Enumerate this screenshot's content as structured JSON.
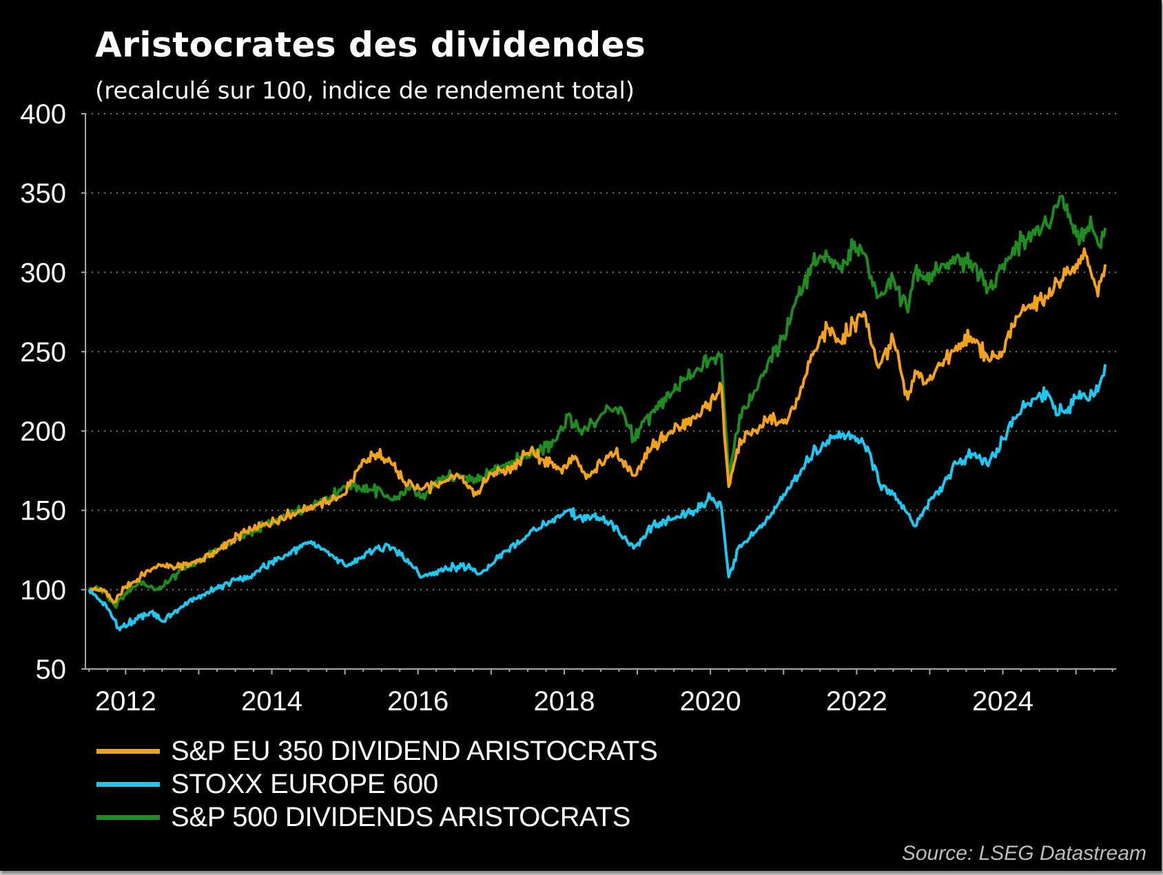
{
  "header": {
    "title": "Aristocrates des dividendes",
    "subtitle": "(recalculé sur 100, indice de rendement total)"
  },
  "footer": {
    "source": "Source: LSEG Datastream"
  },
  "chart_data": {
    "type": "line",
    "title": "Aristocrates des dividendes",
    "subtitle": "(recalculé sur 100, indice de rendement total)",
    "xlabel": "",
    "ylabel": "",
    "xlim": [
      2011.45,
      2025.55
    ],
    "ylim": [
      50,
      400
    ],
    "yticks": [
      50,
      100,
      150,
      200,
      250,
      300,
      350,
      400
    ],
    "xticks": [
      2012,
      2014,
      2016,
      2018,
      2020,
      2022,
      2024
    ],
    "grid": "horizontal dotted",
    "legend": "bottom",
    "series": [
      {
        "name": "S&P EU 350 DIVIDEND ARISTOCRATS",
        "color": "#f5a21b",
        "x": [
          2011.5,
          2011.7,
          2011.85,
          2012.0,
          2012.2,
          2012.45,
          2012.7,
          2013.0,
          2013.3,
          2013.6,
          2013.9,
          2014.2,
          2014.5,
          2014.8,
          2015.0,
          2015.2,
          2015.4,
          2015.6,
          2015.8,
          2016.05,
          2016.3,
          2016.55,
          2016.8,
          2017.0,
          2017.3,
          2017.5,
          2017.7,
          2017.95,
          2018.15,
          2018.3,
          2018.5,
          2018.7,
          2018.95,
          2019.2,
          2019.5,
          2019.8,
          2020.05,
          2020.15,
          2020.25,
          2020.4,
          2020.6,
          2020.8,
          2021.0,
          2021.2,
          2021.4,
          2021.6,
          2021.8,
          2021.95,
          2022.1,
          2022.3,
          2022.5,
          2022.7,
          2022.8,
          2022.95,
          2023.2,
          2023.4,
          2023.6,
          2023.8,
          2024.0,
          2024.2,
          2024.4,
          2024.6,
          2024.8,
          2025.0,
          2025.15,
          2025.3,
          2025.4
        ],
        "values": [
          100,
          100,
          92,
          102,
          108,
          116,
          114,
          118,
          126,
          136,
          141,
          146,
          152,
          156,
          160,
          178,
          185,
          183,
          168,
          163,
          168,
          172,
          160,
          173,
          176,
          186,
          182,
          176,
          184,
          170,
          180,
          186,
          172,
          190,
          200,
          208,
          220,
          228,
          165,
          195,
          200,
          208,
          205,
          220,
          248,
          265,
          255,
          268,
          275,
          240,
          258,
          220,
          238,
          230,
          245,
          255,
          258,
          245,
          250,
          272,
          280,
          284,
          295,
          305,
          310,
          285,
          305
        ]
      },
      {
        "name": "STOXX EUROPE 600",
        "color": "#1ec8f0",
        "x": [
          2011.5,
          2011.75,
          2011.9,
          2012.1,
          2012.35,
          2012.5,
          2012.8,
          2013.1,
          2013.4,
          2013.7,
          2014.0,
          2014.2,
          2014.5,
          2014.75,
          2015.0,
          2015.2,
          2015.4,
          2015.6,
          2015.8,
          2016.05,
          2016.3,
          2016.6,
          2016.85,
          2017.1,
          2017.4,
          2017.6,
          2017.9,
          2018.05,
          2018.2,
          2018.5,
          2018.7,
          2018.95,
          2019.2,
          2019.5,
          2019.8,
          2020.0,
          2020.15,
          2020.25,
          2020.4,
          2020.6,
          2020.8,
          2021.0,
          2021.2,
          2021.4,
          2021.6,
          2021.8,
          2021.95,
          2022.15,
          2022.3,
          2022.5,
          2022.7,
          2022.8,
          2022.95,
          2023.2,
          2023.4,
          2023.6,
          2023.8,
          2024.0,
          2024.2,
          2024.4,
          2024.6,
          2024.75,
          2024.9,
          2025.05,
          2025.15,
          2025.3,
          2025.4
        ],
        "values": [
          100,
          88,
          76,
          80,
          86,
          80,
          90,
          98,
          104,
          108,
          118,
          122,
          130,
          124,
          115,
          120,
          125,
          128,
          120,
          108,
          112,
          115,
          110,
          120,
          130,
          138,
          146,
          150,
          146,
          145,
          140,
          126,
          140,
          145,
          150,
          158,
          152,
          108,
          128,
          136,
          145,
          160,
          172,
          186,
          194,
          198,
          196,
          190,
          168,
          160,
          148,
          140,
          152,
          168,
          180,
          185,
          178,
          195,
          210,
          220,
          225,
          210,
          215,
          225,
          220,
          225,
          242
        ]
      },
      {
        "name": "S&P 500 DIVIDENDS ARISTOCRATS",
        "color": "#1e8c1e",
        "x": [
          2011.5,
          2011.7,
          2011.85,
          2012.0,
          2012.2,
          2012.45,
          2012.7,
          2013.0,
          2013.3,
          2013.6,
          2013.9,
          2014.2,
          2014.5,
          2014.8,
          2015.0,
          2015.2,
          2015.5,
          2015.7,
          2015.9,
          2016.05,
          2016.3,
          2016.55,
          2016.8,
          2017.0,
          2017.3,
          2017.6,
          2017.9,
          2018.05,
          2018.2,
          2018.4,
          2018.6,
          2018.8,
          2018.95,
          2019.2,
          2019.5,
          2019.8,
          2020.05,
          2020.15,
          2020.25,
          2020.4,
          2020.6,
          2020.8,
          2021.0,
          2021.2,
          2021.4,
          2021.6,
          2021.8,
          2021.95,
          2022.1,
          2022.3,
          2022.5,
          2022.7,
          2022.8,
          2022.95,
          2023.2,
          2023.4,
          2023.6,
          2023.8,
          2024.0,
          2024.2,
          2024.4,
          2024.6,
          2024.8,
          2024.95,
          2025.1,
          2025.2,
          2025.3,
          2025.4
        ],
        "values": [
          100,
          100,
          90,
          98,
          105,
          100,
          110,
          118,
          126,
          134,
          140,
          146,
          152,
          158,
          165,
          164,
          162,
          157,
          165,
          158,
          170,
          172,
          168,
          175,
          180,
          186,
          195,
          210,
          200,
          205,
          215,
          212,
          196,
          212,
          225,
          238,
          246,
          248,
          170,
          210,
          225,
          245,
          260,
          285,
          305,
          310,
          300,
          315,
          312,
          285,
          296,
          275,
          300,
          295,
          305,
          310,
          305,
          290,
          305,
          318,
          325,
          330,
          348,
          330,
          320,
          335,
          318,
          328
        ]
      }
    ]
  }
}
